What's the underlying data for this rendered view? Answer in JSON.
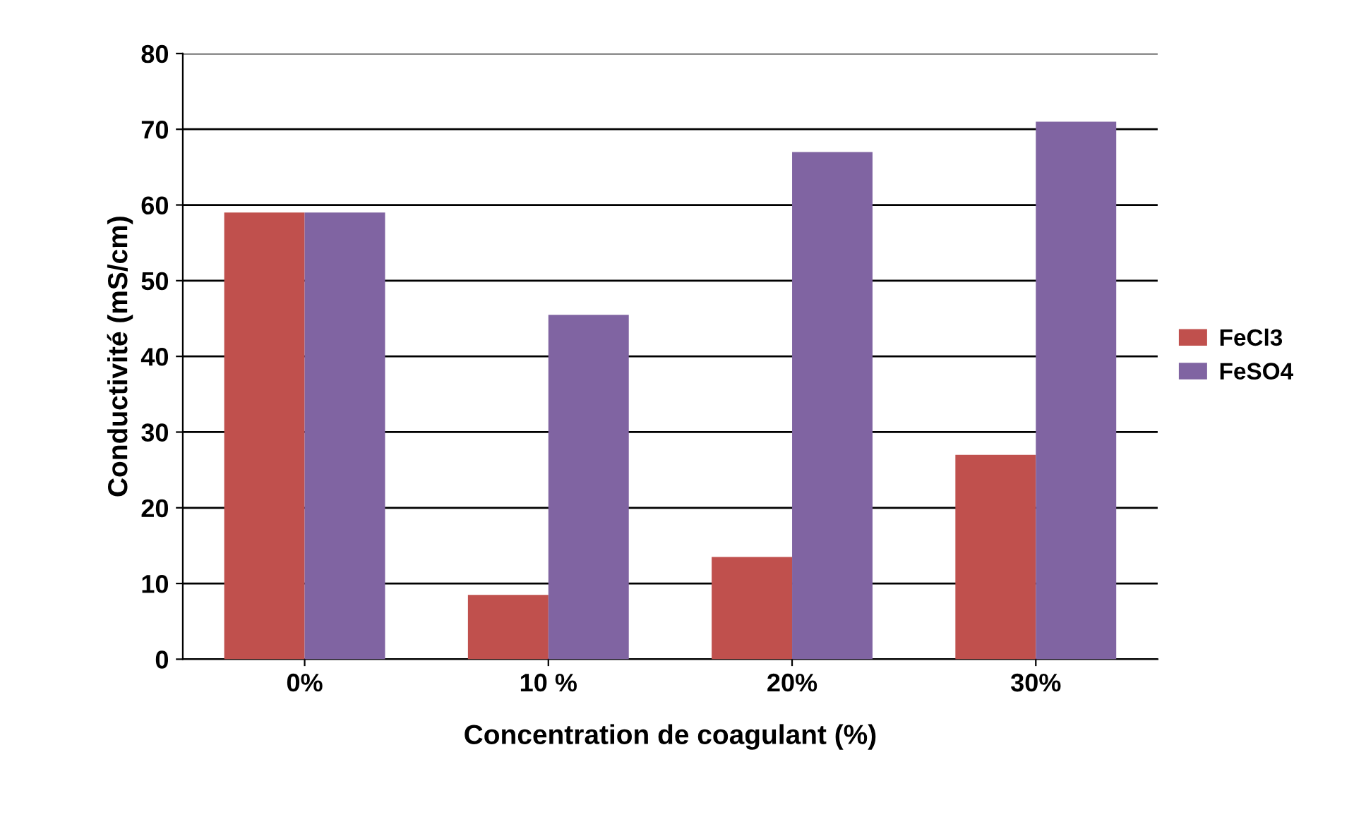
{
  "chart_data": {
    "type": "bar",
    "xlabel": "Concentration de coagulant (%)",
    "ylabel": "Conductivité (mS/cm)",
    "categories": [
      "0%",
      "10 %",
      "20%",
      "30%"
    ],
    "series": [
      {
        "name": "FeCl3",
        "color": "#c0504d",
        "values": [
          59,
          8.5,
          13.5,
          27
        ]
      },
      {
        "name": "FeSO4",
        "color": "#8064a2",
        "values": [
          59,
          45.5,
          67,
          71
        ]
      }
    ],
    "ylim": [
      0,
      80
    ],
    "yticks": [
      0,
      10,
      20,
      30,
      40,
      50,
      60,
      70,
      80
    ],
    "grid": "y",
    "legend": "right"
  }
}
